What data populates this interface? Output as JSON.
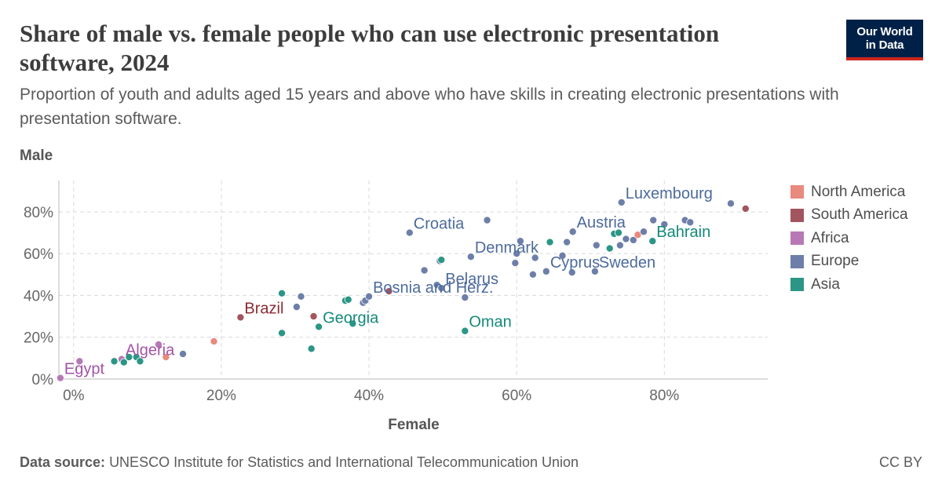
{
  "title": "Share of male vs. female people who can use electronic presentation software, 2024",
  "subtitle": "Proportion of youth and adults aged 15 years and above who have skills in creating electronic presentations with presentation software.",
  "logo": {
    "line1": "Our World",
    "line2": "in Data"
  },
  "footer": {
    "source_label": "Data source:",
    "source_text": "UNESCO Institute for Statistics and International Telecommunication Union",
    "license": "CC BY"
  },
  "legend": [
    {
      "name": "North America",
      "color": "#e88a7d"
    },
    {
      "name": "South America",
      "color": "#a2555f"
    },
    {
      "name": "Africa",
      "color": "#b779b6"
    },
    {
      "name": "Europe",
      "color": "#6d7fa8"
    },
    {
      "name": "Asia",
      "color": "#2b9686"
    }
  ],
  "chart_data": {
    "type": "scatter",
    "xlabel": "Female",
    "ylabel": "Male",
    "xlim": [
      -2,
      94
    ],
    "ylim": [
      0,
      95
    ],
    "x_ticks": [
      0,
      20,
      40,
      60,
      80
    ],
    "y_ticks": [
      0,
      20,
      40,
      60,
      80
    ],
    "x_tick_labels": [
      "0%",
      "20%",
      "40%",
      "60%",
      "80%"
    ],
    "y_tick_labels": [
      "0%",
      "20%",
      "40%",
      "60%",
      "80%"
    ],
    "grid": true,
    "legend_position": "right",
    "label_colors": {
      "North America": "#c05a50",
      "South America": "#8b2b33",
      "Africa": "#a253a6",
      "Europe": "#4c6a9c",
      "Asia": "#14897a"
    },
    "points": [
      {
        "region": "Africa",
        "x": -1.8,
        "y": 0.5,
        "label": "Egypt"
      },
      {
        "region": "Africa",
        "x": 0.8,
        "y": 8.5
      },
      {
        "region": "Africa",
        "x": 6.5,
        "y": 9.5,
        "label": "Algeria"
      },
      {
        "region": "Africa",
        "x": 11.5,
        "y": 16.5
      },
      {
        "region": "Asia",
        "x": 5.5,
        "y": 8.5
      },
      {
        "region": "Asia",
        "x": 6.8,
        "y": 8
      },
      {
        "region": "Asia",
        "x": 7.5,
        "y": 10.5
      },
      {
        "region": "Asia",
        "x": 8.5,
        "y": 10.5
      },
      {
        "region": "Asia",
        "x": 9,
        "y": 8.5
      },
      {
        "region": "North America",
        "x": 12.5,
        "y": 10.5
      },
      {
        "region": "Europe",
        "x": 14.8,
        "y": 12
      },
      {
        "region": "North America",
        "x": 19,
        "y": 18
      },
      {
        "region": "South America",
        "x": 22.6,
        "y": 29.5,
        "label": "Brazil"
      },
      {
        "region": "Asia",
        "x": 28.2,
        "y": 41
      },
      {
        "region": "Asia",
        "x": 28.2,
        "y": 22
      },
      {
        "region": "Europe",
        "x": 30.2,
        "y": 34.5
      },
      {
        "region": "Europe",
        "x": 30.8,
        "y": 39.5
      },
      {
        "region": "South America",
        "x": 32.5,
        "y": 30
      },
      {
        "region": "Asia",
        "x": 32.2,
        "y": 14.5
      },
      {
        "region": "Asia",
        "x": 33.2,
        "y": 25,
        "label": "Georgia"
      },
      {
        "region": "Asia",
        "x": 36.8,
        "y": 37.5
      },
      {
        "region": "Asia",
        "x": 37.2,
        "y": 38
      },
      {
        "region": "Asia",
        "x": 37.8,
        "y": 26.5
      },
      {
        "region": "Europe",
        "x": 39.2,
        "y": 36.5
      },
      {
        "region": "Europe",
        "x": 39.5,
        "y": 37.5
      },
      {
        "region": "Europe",
        "x": 40,
        "y": 39.5,
        "label": "Bosnia and Herz."
      },
      {
        "region": "South America",
        "x": 42.7,
        "y": 42
      },
      {
        "region": "Europe",
        "x": 45.5,
        "y": 70,
        "label": "Croatia"
      },
      {
        "region": "Europe",
        "x": 47.5,
        "y": 52
      },
      {
        "region": "Europe",
        "x": 49.2,
        "y": 45
      },
      {
        "region": "Europe",
        "x": 49.8,
        "y": 43.5,
        "label": "Belarus"
      },
      {
        "region": "Europe",
        "x": 49.6,
        "y": 56.5
      },
      {
        "region": "Asia",
        "x": 49.8,
        "y": 57
      },
      {
        "region": "Europe",
        "x": 53,
        "y": 39
      },
      {
        "region": "Asia",
        "x": 53,
        "y": 23,
        "label": "Oman"
      },
      {
        "region": "Europe",
        "x": 53.8,
        "y": 58.5,
        "label": "Denmark"
      },
      {
        "region": "Europe",
        "x": 56,
        "y": 76
      },
      {
        "region": "Europe",
        "x": 59.8,
        "y": 55.5
      },
      {
        "region": "Europe",
        "x": 60,
        "y": 60
      },
      {
        "region": "Europe",
        "x": 60.5,
        "y": 66
      },
      {
        "region": "Europe",
        "x": 62.2,
        "y": 50
      },
      {
        "region": "Europe",
        "x": 62.5,
        "y": 58
      },
      {
        "region": "Europe",
        "x": 64,
        "y": 51.5,
        "label": "Cyprus"
      },
      {
        "region": "Asia",
        "x": 64.5,
        "y": 65.5
      },
      {
        "region": "Europe",
        "x": 66.2,
        "y": 59
      },
      {
        "region": "Europe",
        "x": 66.8,
        "y": 65.5
      },
      {
        "region": "Europe",
        "x": 67.5,
        "y": 51
      },
      {
        "region": "Europe",
        "x": 67.6,
        "y": 70.5,
        "label": "Austria"
      },
      {
        "region": "Europe",
        "x": 70.6,
        "y": 51.5,
        "label": "Sweden"
      },
      {
        "region": "Europe",
        "x": 70.8,
        "y": 64
      },
      {
        "region": "Asia",
        "x": 72.6,
        "y": 62.5
      },
      {
        "region": "Asia",
        "x": 73.2,
        "y": 69.5
      },
      {
        "region": "Asia",
        "x": 73.8,
        "y": 70
      },
      {
        "region": "Europe",
        "x": 74,
        "y": 64
      },
      {
        "region": "Europe",
        "x": 74.2,
        "y": 84.5,
        "label": "Luxembourg"
      },
      {
        "region": "Europe",
        "x": 74.8,
        "y": 67
      },
      {
        "region": "Europe",
        "x": 75.8,
        "y": 66.5
      },
      {
        "region": "North America",
        "x": 76.4,
        "y": 69
      },
      {
        "region": "Europe",
        "x": 77.2,
        "y": 70.5
      },
      {
        "region": "Europe",
        "x": 78.5,
        "y": 76
      },
      {
        "region": "Asia",
        "x": 78.4,
        "y": 66,
        "label": "Bahrain"
      },
      {
        "region": "Europe",
        "x": 80,
        "y": 74
      },
      {
        "region": "Europe",
        "x": 82.8,
        "y": 76
      },
      {
        "region": "Europe",
        "x": 83.5,
        "y": 75
      },
      {
        "region": "Europe",
        "x": 89,
        "y": 84
      },
      {
        "region": "South America",
        "x": 91,
        "y": 81.5
      }
    ]
  }
}
